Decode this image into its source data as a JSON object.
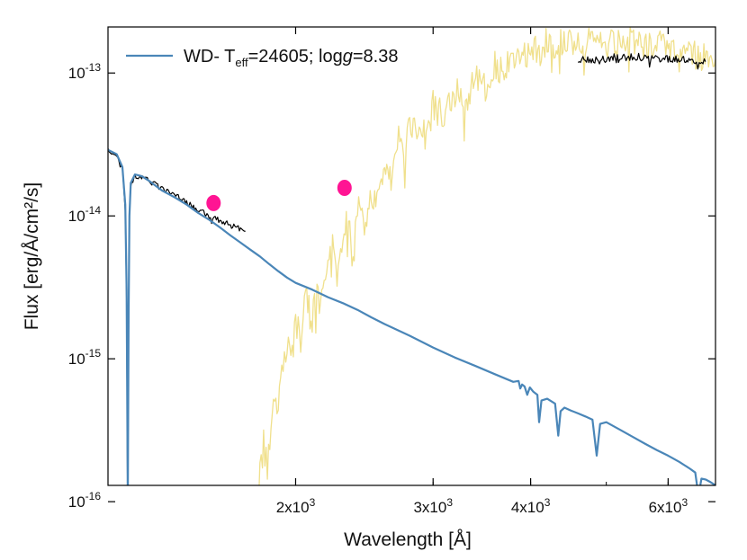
{
  "chart_data": {
    "type": "line",
    "xlabel": "Wavelength [Å]",
    "ylabel": "Flux [erg/Å/cm²/s]",
    "x_scale": "log",
    "y_scale": "log",
    "xlim": [
      1150,
      6900
    ],
    "ylim": [
      1.3e-16,
      2.1e-13
    ],
    "x_ticks": [
      {
        "value": 2000,
        "mantissa": "2x10",
        "exp": "3"
      },
      {
        "value": 3000,
        "mantissa": "3x10",
        "exp": "3"
      },
      {
        "value": 4000,
        "mantissa": "4x10",
        "exp": "3"
      },
      {
        "value": 6000,
        "mantissa": "6x10",
        "exp": "3"
      }
    ],
    "y_ticks": [
      {
        "value": 1e-16,
        "base": "10",
        "exp": "-16"
      },
      {
        "value": 1e-15,
        "base": "10",
        "exp": "-15"
      },
      {
        "value": 1e-14,
        "base": "10",
        "exp": "-14"
      },
      {
        "value": 1e-13,
        "base": "10",
        "exp": "-13"
      }
    ],
    "legend": {
      "location": "top-left",
      "prefix": "WD- T",
      "sub": "eff",
      "mid": "=24605; log",
      "ital": "g",
      "suffix": "=8.38"
    },
    "series": [
      {
        "name": "WD- Teff=24605; logg=8.38",
        "role": "wd_model",
        "color": "#4a86b8",
        "x": [
          1150,
          1180,
          1200,
          1210,
          1215,
          1219,
          1222,
          1225,
          1230,
          1245,
          1270,
          1300,
          1350,
          1400,
          1450,
          1500,
          1550,
          1600,
          1650,
          1700,
          1750,
          1800,
          1850,
          1900,
          1950,
          2000,
          2100,
          2200,
          2300,
          2400,
          2500,
          2600,
          2800,
          3000,
          3200,
          3400,
          3600,
          3800,
          3860,
          3880,
          3900,
          3930,
          3960,
          3990,
          4030,
          4080,
          4101,
          4130,
          4200,
          4300,
          4340,
          4370,
          4420,
          4500,
          4600,
          4700,
          4800,
          4861,
          4910,
          5000,
          5200,
          5400,
          5600,
          5800,
          6000,
          6200,
          6400,
          6500,
          6563,
          6620,
          6700,
          6800,
          6900
        ],
        "y": [
          2.9e-14,
          2.7e-14,
          2.2e-14,
          1.2e-14,
          3e-15,
          1e-16,
          2e-15,
          1e-14,
          1.7e-14,
          1.95e-14,
          1.9e-14,
          1.75e-14,
          1.5e-14,
          1.35e-14,
          1.2e-14,
          1.05e-14,
          9.4e-15,
          8.3e-15,
          7.3e-15,
          6.5e-15,
          5.8e-15,
          5.2e-15,
          4.6e-15,
          4.1e-15,
          3.7e-15,
          3.4e-15,
          3.05e-15,
          2.7e-15,
          2.45e-15,
          2.2e-15,
          1.95e-15,
          1.75e-15,
          1.45e-15,
          1.2e-15,
          1.02e-15,
          8.9e-16,
          7.8e-16,
          6.9e-16,
          7e-16,
          6.2e-16,
          6.6e-16,
          6.4e-16,
          5.6e-16,
          6.3e-16,
          5.9e-16,
          5.6e-16,
          3.6e-16,
          5.1e-16,
          5.25e-16,
          4.85e-16,
          2.9e-16,
          4.3e-16,
          4.55e-16,
          4.35e-16,
          4.15e-16,
          3.95e-16,
          3.75e-16,
          2.1e-16,
          3.5e-16,
          3.6e-16,
          3.2e-16,
          2.85e-16,
          2.55e-16,
          2.3e-16,
          2.1e-16,
          1.9e-16,
          1.7e-16,
          1.6e-16,
          1.1e-16,
          1.45e-16,
          1.43e-16,
          1.37e-16,
          1.3e-16
        ]
      },
      {
        "name": "",
        "role": "companion_model",
        "color": "#f0e08c",
        "x": [
          1780,
          1800,
          1820,
          1840,
          1860,
          1880,
          1900,
          1920,
          1950,
          1980,
          2000,
          2030,
          2060,
          2100,
          2130,
          2160,
          2200,
          2230,
          2260,
          2300,
          2330,
          2370,
          2400,
          2450,
          2500,
          2550,
          2600,
          2650,
          2700,
          2750,
          2800,
          2900,
          3000,
          3100,
          3200,
          3300,
          3400,
          3500,
          3600,
          3700,
          3800,
          3900,
          4000,
          4100,
          4200,
          4300,
          4400,
          4500,
          4600,
          4800,
          5000,
          5200,
          5400,
          5600,
          5800,
          6000,
          6200,
          6400,
          6600,
          6900
        ],
        "y": [
          8e-17,
          1.5e-16,
          2.5e-16,
          1.8e-16,
          3.5e-16,
          6e-16,
          4.5e-16,
          9e-16,
          1.3e-15,
          1e-15,
          1.9e-15,
          1.4e-15,
          2.8e-15,
          2.2e-15,
          3.5e-15,
          2.9e-15,
          4.5e-15,
          8e-15,
          3.5e-15,
          6e-15,
          9.5e-15,
          5e-15,
          1.15e-14,
          8e-15,
          1.5e-14,
          1.2e-14,
          2.5e-14,
          1.8e-14,
          3.5e-14,
          2.8e-14,
          4.5e-14,
          3.6e-14,
          6e-14,
          4.8e-14,
          7.5e-14,
          6.4e-14,
          9e-14,
          8e-14,
          1.15e-13,
          1e-13,
          1.35e-13,
          1.2e-13,
          1.55e-13,
          1.4e-13,
          1.65e-13,
          1.5e-13,
          1.7e-13,
          1.55e-13,
          1.75e-13,
          1.6e-13,
          1.7e-13,
          1.6e-13,
          1.65e-13,
          1.55e-13,
          1.6e-13,
          1.5e-13,
          1.5e-13,
          1.4e-13,
          1.3e-13,
          1.25e-13
        ]
      },
      {
        "name": "",
        "role": "uv_spectrum",
        "color": "#000000",
        "x": [
          1150,
          1180,
          1200,
          1210,
          1215,
          1219,
          1222,
          1225,
          1230,
          1245,
          1270,
          1300,
          1350,
          1400,
          1450,
          1500,
          1550,
          1600,
          1650,
          1700,
          1725
        ],
        "y": [
          2.9e-14,
          2.6e-14,
          2.1e-14,
          1.1e-14,
          2.5e-15,
          5e-17,
          1.5e-15,
          9.5e-15,
          1.65e-14,
          1.9e-14,
          1.85e-14,
          1.75e-14,
          1.55e-14,
          1.4e-14,
          1.25e-14,
          1.1e-14,
          1e-14,
          9.3e-15,
          8.6e-15,
          8.1e-15,
          7.8e-15
        ]
      },
      {
        "name": "",
        "role": "optical_spectrum",
        "color": "#000000",
        "x": [
          4600,
          4700,
          4800,
          4900,
          5000,
          5100,
          5200,
          5300,
          5400,
          5500,
          5600,
          5700,
          5800,
          5900,
          6000,
          6100,
          6200,
          6300,
          6400,
          6500,
          6600,
          6700
        ],
        "y": [
          1.2e-13,
          1.25e-13,
          1.22e-13,
          1.28e-13,
          1.25e-13,
          1.3e-13,
          1.27e-13,
          1.32e-13,
          1.28e-13,
          1.3e-13,
          1.27e-13,
          1.3e-13,
          1.25e-13,
          1.28e-13,
          1.24e-13,
          1.26e-13,
          1.22e-13,
          1.25e-13,
          1.2e-13,
          1.22e-13,
          1.18e-13,
          1.2e-13
        ]
      },
      {
        "name": "",
        "role": "photometry",
        "type": "scatter",
        "color": "#ff1493",
        "x": [
          1570,
          2310
        ],
        "y": [
          1.23e-14,
          1.57e-14
        ]
      }
    ]
  }
}
